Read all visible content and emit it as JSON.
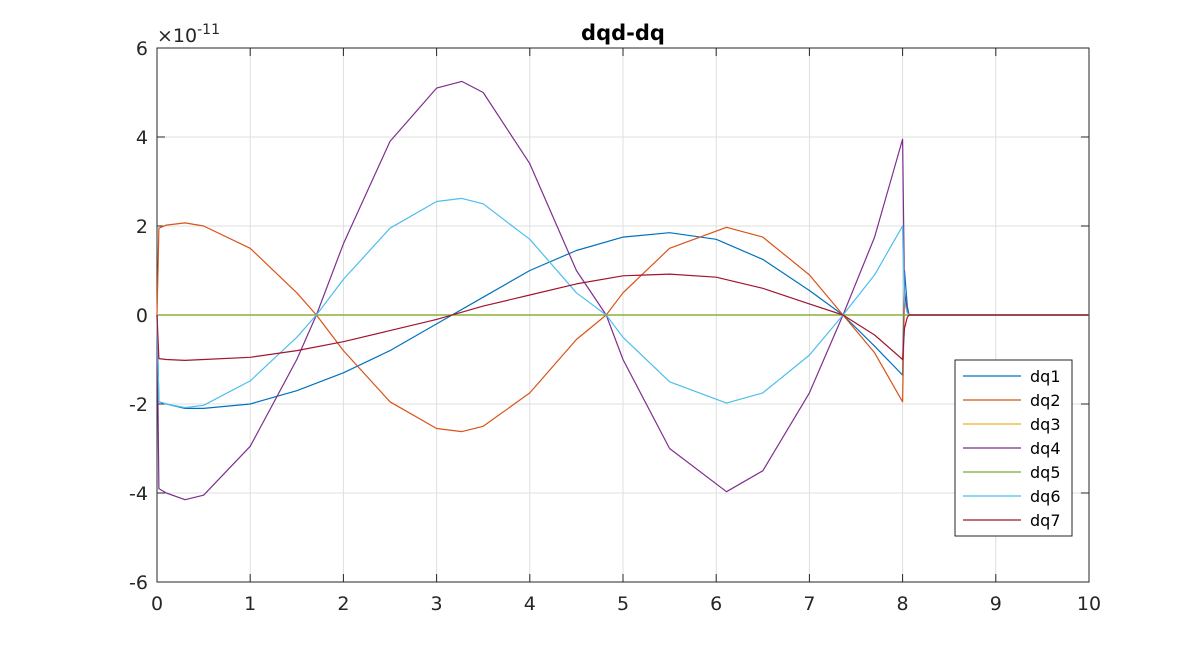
{
  "chart_data": {
    "type": "line",
    "title": "dqd-dq",
    "xlabel": "",
    "ylabel": "",
    "xlim": [
      0,
      10
    ],
    "ylim": [
      -6,
      6
    ],
    "xticks": [
      "0",
      "1",
      "2",
      "3",
      "4",
      "5",
      "6",
      "7",
      "8",
      "9",
      "10"
    ],
    "yticks": [
      "-6",
      "-4",
      "-2",
      "0",
      "2",
      "4",
      "6"
    ],
    "y_exponent_prefix": "×10",
    "y_exponent": "-11",
    "grid": true,
    "legend_position": "bottom-right",
    "series": [
      {
        "name": "dq1",
        "color": "#0072bd",
        "x": [
          0,
          0.02,
          0.1,
          0.3,
          0.5,
          1.0,
          1.5,
          2.0,
          2.5,
          3.0,
          3.5,
          4.0,
          4.5,
          5.0,
          5.5,
          6.0,
          6.5,
          7.0,
          7.36,
          7.7,
          8.0,
          8.02,
          8.05,
          8.07,
          10
        ],
        "y": [
          0,
          -1.95,
          -2.0,
          -2.1,
          -2.1,
          -2.0,
          -1.7,
          -1.3,
          -0.8,
          -0.2,
          0.4,
          1.0,
          1.45,
          1.75,
          1.85,
          1.7,
          1.25,
          0.55,
          0,
          -0.7,
          -1.35,
          1.0,
          0.2,
          0,
          0
        ]
      },
      {
        "name": "dq2",
        "color": "#d95319",
        "x": [
          0,
          0.02,
          0.1,
          0.3,
          0.5,
          1.0,
          1.5,
          1.71,
          2.0,
          2.5,
          3.0,
          3.27,
          3.5,
          4.0,
          4.5,
          4.82,
          5.0,
          5.5,
          6.11,
          6.5,
          7.0,
          7.36,
          7.7,
          8.0,
          8.02,
          8.05,
          8.07,
          10
        ],
        "y": [
          0,
          1.95,
          2.02,
          2.07,
          2.0,
          1.5,
          0.5,
          0,
          -0.8,
          -1.95,
          -2.55,
          -2.62,
          -2.5,
          -1.75,
          -0.55,
          0,
          0.5,
          1.5,
          1.97,
          1.75,
          0.9,
          0,
          -0.85,
          -1.95,
          0.5,
          0.1,
          0,
          0
        ]
      },
      {
        "name": "dq3",
        "color": "#edb120",
        "x": [
          0,
          10
        ],
        "y": [
          0,
          0
        ]
      },
      {
        "name": "dq4",
        "color": "#7e2f8e",
        "x": [
          0,
          0.02,
          0.1,
          0.3,
          0.5,
          1.0,
          1.5,
          1.71,
          2.0,
          2.5,
          3.0,
          3.27,
          3.5,
          4.0,
          4.5,
          4.82,
          5.0,
          5.5,
          6.11,
          6.5,
          7.0,
          7.36,
          7.7,
          8.0,
          8.02,
          8.05,
          8.07,
          10
        ],
        "y": [
          0,
          -3.9,
          -4.0,
          -4.15,
          -4.05,
          -2.95,
          -1.0,
          0,
          1.6,
          3.9,
          5.1,
          5.25,
          5.0,
          3.4,
          1.0,
          0,
          -1.0,
          -3.0,
          -3.97,
          -3.5,
          -1.75,
          0,
          1.75,
          3.95,
          0.5,
          0.1,
          0,
          0
        ]
      },
      {
        "name": "dq5",
        "color": "#77ac30",
        "x": [
          0,
          10
        ],
        "y": [
          0,
          0
        ]
      },
      {
        "name": "dq6",
        "color": "#4dbeee",
        "x": [
          0,
          0.02,
          0.1,
          0.3,
          0.5,
          1.0,
          1.5,
          1.71,
          2.0,
          2.5,
          3.0,
          3.27,
          3.5,
          4.0,
          4.5,
          4.82,
          5.0,
          5.5,
          6.11,
          6.5,
          7.0,
          7.36,
          7.7,
          8.0,
          8.02,
          8.05,
          8.07,
          10
        ],
        "y": [
          0,
          -1.95,
          -2.0,
          -2.08,
          -2.03,
          -1.48,
          -0.5,
          0,
          0.8,
          1.95,
          2.55,
          2.62,
          2.5,
          1.7,
          0.5,
          0,
          -0.5,
          -1.5,
          -1.98,
          -1.75,
          -0.9,
          0,
          0.9,
          2.0,
          0.3,
          0.05,
          0,
          0
        ]
      },
      {
        "name": "dq7",
        "color": "#a2142f",
        "x": [
          0,
          0.02,
          0.1,
          0.3,
          0.5,
          1.0,
          1.5,
          2.0,
          2.5,
          3.0,
          3.5,
          4.0,
          4.5,
          5.0,
          5.5,
          6.0,
          6.5,
          7.0,
          7.36,
          7.7,
          8.0,
          8.02,
          8.05,
          8.07,
          10
        ],
        "y": [
          0,
          -0.98,
          -1.0,
          -1.02,
          -1.0,
          -0.95,
          -0.8,
          -0.6,
          -0.35,
          -0.1,
          0.2,
          0.45,
          0.7,
          0.88,
          0.92,
          0.85,
          0.6,
          0.25,
          0,
          -0.45,
          -1.0,
          -0.3,
          -0.05,
          0,
          0
        ]
      }
    ]
  }
}
